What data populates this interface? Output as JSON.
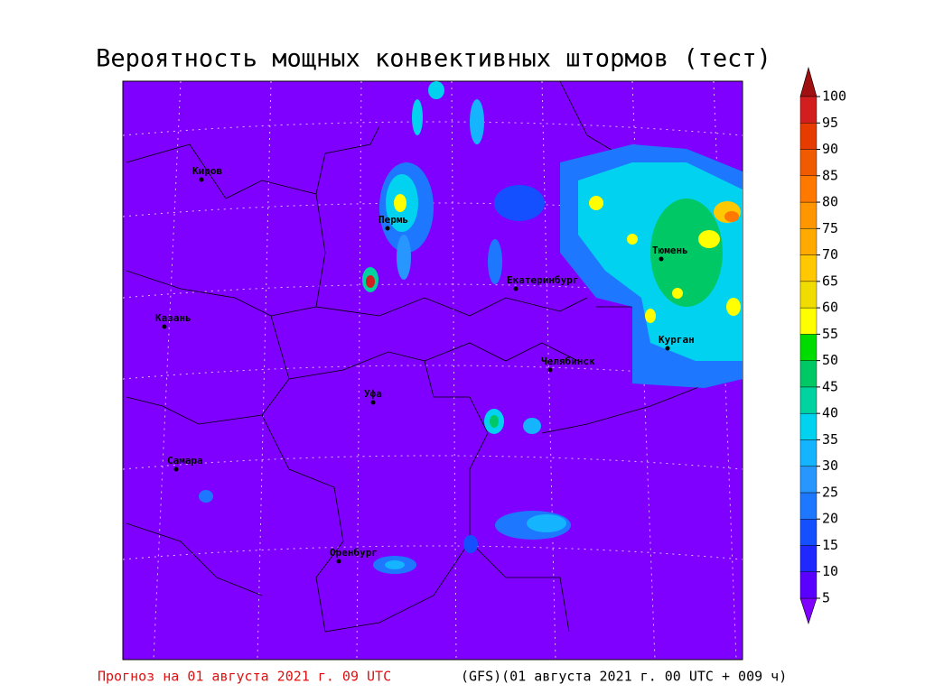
{
  "title": "Вероятность мощных конвективных штормов (тест)",
  "cities": [
    "Киров",
    "Пермь",
    "Казань",
    "Екатеринбург",
    "Тюмень",
    "Уфа",
    "Челябинск",
    "Курган",
    "Самара",
    "Оренбург"
  ],
  "colorbar": {
    "levels": [
      {
        "value": 5,
        "color": "#5a00ff"
      },
      {
        "value": 10,
        "color": "#1e28ff"
      },
      {
        "value": 15,
        "color": "#1450ff"
      },
      {
        "value": 20,
        "color": "#1e78ff"
      },
      {
        "value": 25,
        "color": "#2896ff"
      },
      {
        "value": 30,
        "color": "#14b4ff"
      },
      {
        "value": 35,
        "color": "#00d2f0"
      },
      {
        "value": 40,
        "color": "#00d2a0"
      },
      {
        "value": 45,
        "color": "#00c864"
      },
      {
        "value": 50,
        "color": "#00dc00"
      },
      {
        "value": 55,
        "color": "#ffff00"
      },
      {
        "value": 60,
        "color": "#f0dc00"
      },
      {
        "value": 65,
        "color": "#ffc800"
      },
      {
        "value": 70,
        "color": "#ffaa00"
      },
      {
        "value": 75,
        "color": "#ff9600"
      },
      {
        "value": 80,
        "color": "#ff7800"
      },
      {
        "value": 85,
        "color": "#f05a00"
      },
      {
        "value": 90,
        "color": "#e63c00"
      },
      {
        "value": 95,
        "color": "#d21e1e"
      },
      {
        "value": 100,
        "color": "#b41414"
      }
    ],
    "below_color": "#8000ff",
    "above_color": "#a01010"
  },
  "footer": {
    "forecast": "Прогноз на 01 августа 2021 г. 09 UTC",
    "run": "(GFS)(01 августа 2021 г. 00 UTC + 009 ч)"
  }
}
